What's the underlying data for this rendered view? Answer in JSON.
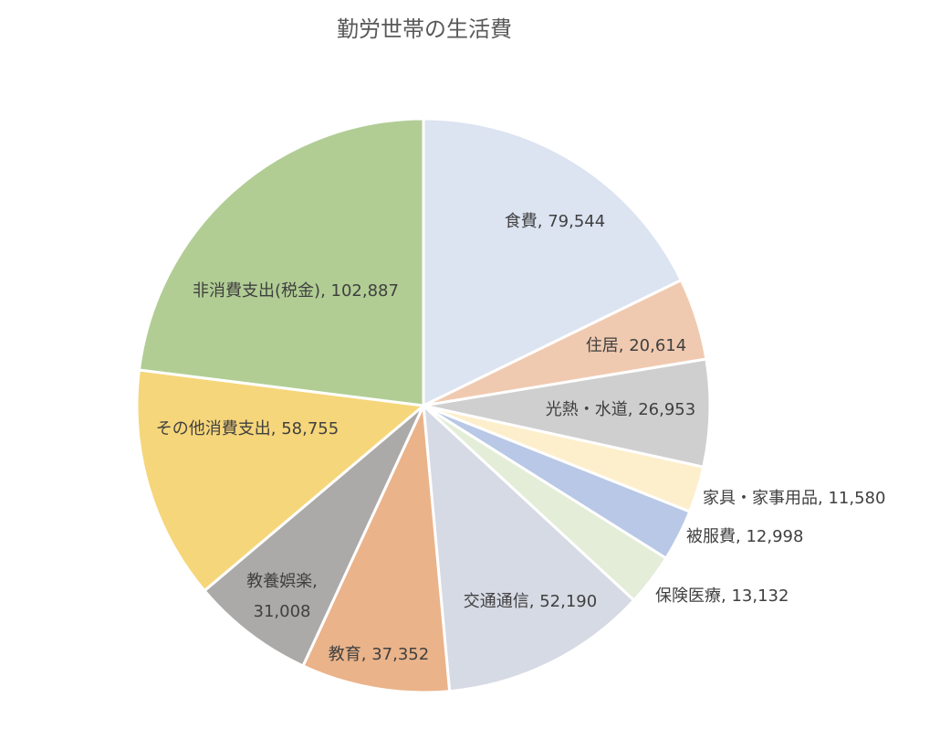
{
  "chart_data": {
    "type": "pie",
    "title": "勤労世帯の生活費",
    "categories": [
      "食費",
      "住居",
      "光熱・水道",
      "家具・家事用品",
      "被服費",
      "保険医療",
      "交通通信",
      "教育",
      "教養娯楽",
      "その他消費支出",
      "非消費支出(税金)"
    ],
    "values": [
      79544,
      20614,
      26953,
      11580,
      12998,
      13132,
      52190,
      37352,
      31008,
      58755,
      102887
    ],
    "labels": [
      [
        "食費, 79,544"
      ],
      [
        "住居, 20,614"
      ],
      [
        "光熱・水道, 26,953"
      ],
      [
        "家具・家事用品, 11,580"
      ],
      [
        "被服費, 12,998"
      ],
      [
        "保険医療, 13,132"
      ],
      [
        "交通通信, 52,190"
      ],
      [
        "教育, 37,352"
      ],
      [
        "教養娯楽,",
        "31,008"
      ],
      [
        "その他消費支出, 58,755"
      ],
      [
        "非消費支出(税金), 102,887"
      ]
    ],
    "colors": [
      "#dce3f1",
      "#f0cab0",
      "#d0cfd0",
      "#fdefcc",
      "#b8c8e6",
      "#e3edd8",
      "#d6dae4",
      "#eab38a",
      "#acaaa9",
      "#f6d67a",
      "#b1cd94"
    ],
    "legend": "none"
  }
}
